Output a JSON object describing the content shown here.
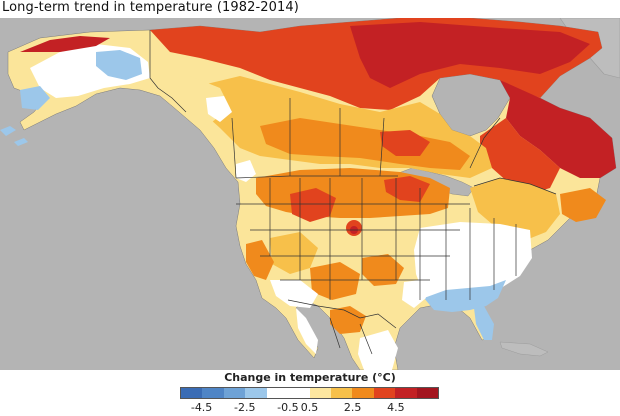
{
  "title": "Long-term trend in temperature (1982-2014)",
  "legend": {
    "title": "Change in temperature (°C)",
    "colors": [
      "#3a6cb5",
      "#4f85c6",
      "#6ea2d6",
      "#9cc7ea",
      "#ffffff",
      "#ffffff",
      "#fde7a0",
      "#f7c04a",
      "#f08a1c",
      "#e1431e",
      "#c32124",
      "#a3151f"
    ],
    "ticks": [
      {
        "label": "-4.5",
        "pos": 0.5
      },
      {
        "label": "-2.5",
        "pos": 2.5
      },
      {
        "label": "-0.5",
        "pos": 4.5
      },
      {
        "label": "0.5",
        "pos": 5.5
      },
      {
        "label": "2.5",
        "pos": 7.5
      },
      {
        "label": "4.5",
        "pos": 9.5
      }
    ]
  },
  "palette": {
    "ocean": "#b4b4b4",
    "land_base": "#fbe59a",
    "white": "#ffffff",
    "light_blue": "#9cc7ea",
    "mid_blue": "#7fb2e0",
    "orange_light": "#f7c04a",
    "orange": "#f08a1c",
    "red": "#e1431e",
    "dark_red": "#c32124",
    "border": "#333333"
  }
}
